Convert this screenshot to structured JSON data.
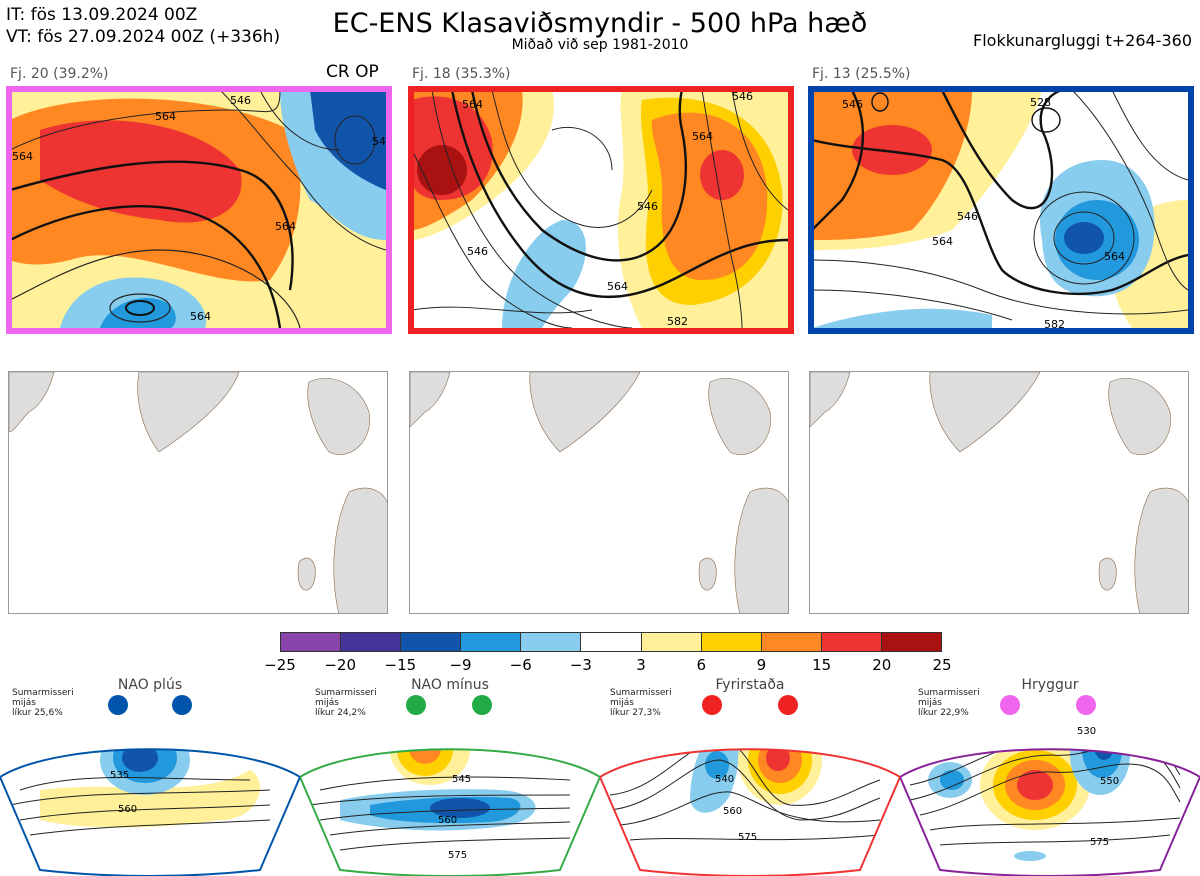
{
  "header": {
    "it_line": "IT: fös 13.09.2024 00Z",
    "vt_line": "VT: fös 27.09.2024 00Z  (+336h)",
    "title": "EC-ENS Klasaviðsmyndir - 500 hPa hæð",
    "subtitle": "Miðað við sep 1981-2010",
    "window": "Flokkunargluggi t+264-360"
  },
  "clusters": [
    {
      "label": "Fj. 20 (39.2%)",
      "frame_color": "#ee66ee",
      "tag": "CR OP"
    },
    {
      "label": "Fj. 18 (35.3%)",
      "frame_color": "#ee2222",
      "tag": ""
    },
    {
      "label": "Fj. 13 (25.5%)",
      "frame_color": "#0044aa",
      "tag": ""
    }
  ],
  "contour_labels": {
    "c1": [
      "546",
      "564",
      "564",
      "564",
      "564",
      "54"
    ],
    "c2": [
      "546",
      "564",
      "546",
      "564",
      "546",
      "564",
      "582"
    ],
    "c3": [
      "528",
      "546",
      "546",
      "564",
      "564",
      "582"
    ]
  },
  "colorbar": {
    "colors": [
      "#8844aa",
      "#443399",
      "#1155aa",
      "#2299dd",
      "#88ccee",
      "#ffffff",
      "#fff099",
      "#ffd000",
      "#ff8822",
      "#ee3333",
      "#aa1111"
    ],
    "ticks": [
      "−25",
      "−20",
      "−15",
      "−9",
      "−6",
      "−3",
      "3",
      "6",
      "9",
      "15",
      "20",
      "25"
    ]
  },
  "regimes": [
    {
      "name": "NAO plús",
      "season": "Sumarmisseri",
      "type": "mijás",
      "prob": "líkur 25,6%",
      "dot_color": "#0055aa",
      "frame_color": "#0055aa",
      "labels": [
        "535",
        "560"
      ]
    },
    {
      "name": "NAO mínus",
      "season": "Sumarmisseri",
      "type": "mijás",
      "prob": "líkur 24,2%",
      "dot_color": "#22aa44",
      "frame_color": "#33aa44",
      "labels": [
        "545",
        "560",
        "575"
      ]
    },
    {
      "name": "Fyrirstaða",
      "season": "Sumarmisseri",
      "type": "mijás",
      "prob": "líkur 27,3%",
      "dot_color": "#ee2222",
      "frame_color": "#ee3333",
      "labels": [
        "540",
        "560",
        "575"
      ]
    },
    {
      "name": "Hryggur",
      "season": "Sumarmisseri",
      "type": "mijás",
      "prob": "líkur 22,9%",
      "dot_color": "#ee66ee",
      "frame_color": "#882299",
      "labels": [
        "530",
        "550",
        "575"
      ]
    }
  ]
}
